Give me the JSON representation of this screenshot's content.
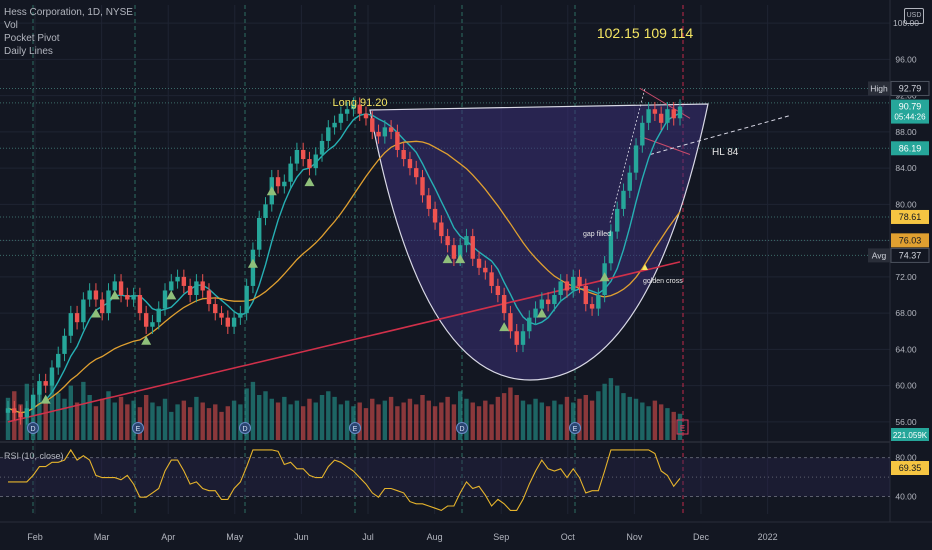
{
  "legend": {
    "title": "Hess Corporation, 1D, NYSE",
    "items": [
      "Vol",
      "Pocket Pivot",
      "Daily Lines"
    ]
  },
  "currency_label": "USD",
  "colors": {
    "background": "#131722",
    "up": "#26a69a",
    "down": "#ef5350",
    "teal_ma": "#26b0b4",
    "orange_ma": "#e0a030",
    "red_ma": "#d0304a",
    "cup_fill": "#3b2f77",
    "annotation_yellow": "#f5e663",
    "rsi": "#e6b42c"
  },
  "chart_data": [
    {
      "type": "candlestick",
      "title": "",
      "x_axis": {
        "tick_labels": [
          "Feb",
          "Mar",
          "Apr",
          "May",
          "Jun",
          "Jul",
          "Aug",
          "Sep",
          "Oct",
          "Nov",
          "Dec",
          "2022"
        ]
      },
      "y_axis": {
        "ylim": [
          54,
          102
        ],
        "tick_labels": [
          "100.00",
          "96.00",
          "92.00",
          "88.00",
          "84.00",
          "80.00",
          "76.00",
          "72.00",
          "68.00",
          "64.00",
          "60.00",
          "56.00"
        ],
        "scale": "linear"
      },
      "price_markers": [
        {
          "label": "High",
          "value": "92.79",
          "price": 92.79
        },
        {
          "label": "",
          "value": "90.79",
          "sub": "05:44:26",
          "price": 90.79
        },
        {
          "label": "",
          "value": "86.19",
          "price": 86.19
        },
        {
          "label": "",
          "value": "78.61",
          "price": 78.61
        },
        {
          "label": "",
          "value": "76.03",
          "price": 76.03
        },
        {
          "label": "Avg",
          "value": "74.37",
          "price": 74.37
        }
      ],
      "volume_marker": "221.059K",
      "annotations": {
        "long": "Long 91.20",
        "targets": "102.15  109  114",
        "hl": "HL  84",
        "gap": "gap filled",
        "cross": "golden cross"
      },
      "event_markers": [
        "D",
        "E",
        "D",
        "E",
        "D",
        "E"
      ],
      "closes": [
        57.5,
        57.0,
        56.5,
        57.5,
        59.0,
        60.5,
        60.0,
        62.0,
        63.5,
        65.5,
        68.0,
        67.0,
        69.5,
        70.5,
        69.5,
        68.0,
        70.5,
        71.5,
        70.0,
        69.5,
        70.0,
        68.0,
        66.5,
        67.0,
        68.5,
        70.5,
        71.5,
        72.0,
        71.0,
        70.0,
        71.5,
        70.5,
        69.0,
        68.0,
        67.5,
        66.5,
        67.5,
        68.0,
        71.0,
        75.0,
        78.5,
        80.0,
        83.0,
        82.0,
        82.5,
        84.5,
        86.0,
        85.0,
        84.0,
        85.5,
        87.0,
        88.5,
        89.0,
        90.0,
        90.5,
        91.0,
        90.0,
        89.5,
        88.0,
        87.5,
        88.5,
        88.0,
        86.0,
        85.0,
        84.0,
        83.0,
        81.0,
        79.5,
        78.0,
        76.5,
        75.5,
        74.0,
        75.5,
        76.5,
        74.0,
        73.0,
        72.5,
        71.0,
        70.0,
        68.0,
        66.0,
        64.5,
        66.0,
        67.5,
        68.5,
        69.5,
        69.0,
        70.0,
        71.5,
        70.5,
        72.0,
        71.0,
        69.0,
        68.5,
        70.0,
        73.5,
        77.0,
        79.5,
        81.5,
        83.5,
        86.5,
        89.0,
        90.5,
        90.0,
        89.0,
        90.5,
        89.5,
        90.8
      ],
      "volume": [
        45,
        52,
        38,
        60,
        48,
        55,
        42,
        70,
        50,
        44,
        58,
        40,
        62,
        48,
        36,
        44,
        52,
        40,
        46,
        38,
        42,
        35,
        48,
        40,
        36,
        44,
        30,
        38,
        42,
        35,
        46,
        40,
        34,
        38,
        30,
        36,
        42,
        38,
        55,
        62,
        48,
        52,
        44,
        40,
        46,
        38,
        42,
        36,
        44,
        40,
        48,
        52,
        46,
        38,
        42,
        36,
        40,
        34,
        44,
        38,
        42,
        46,
        36,
        40,
        44,
        38,
        48,
        42,
        36,
        40,
        46,
        38,
        52,
        44,
        40,
        36,
        42,
        38,
        46,
        50,
        56,
        48,
        42,
        38,
        44,
        40,
        36,
        42,
        38,
        46,
        40,
        44,
        48,
        42,
        52,
        60,
        66,
        58,
        50,
        46,
        44,
        40,
        36,
        42,
        38,
        34,
        30,
        28
      ],
      "rsi": {
        "label": "RSI (10, close)",
        "value": "69.35",
        "tick_labels": [
          "80.00",
          "40.00"
        ],
        "ylim": [
          22,
          92
        ]
      }
    }
  ]
}
